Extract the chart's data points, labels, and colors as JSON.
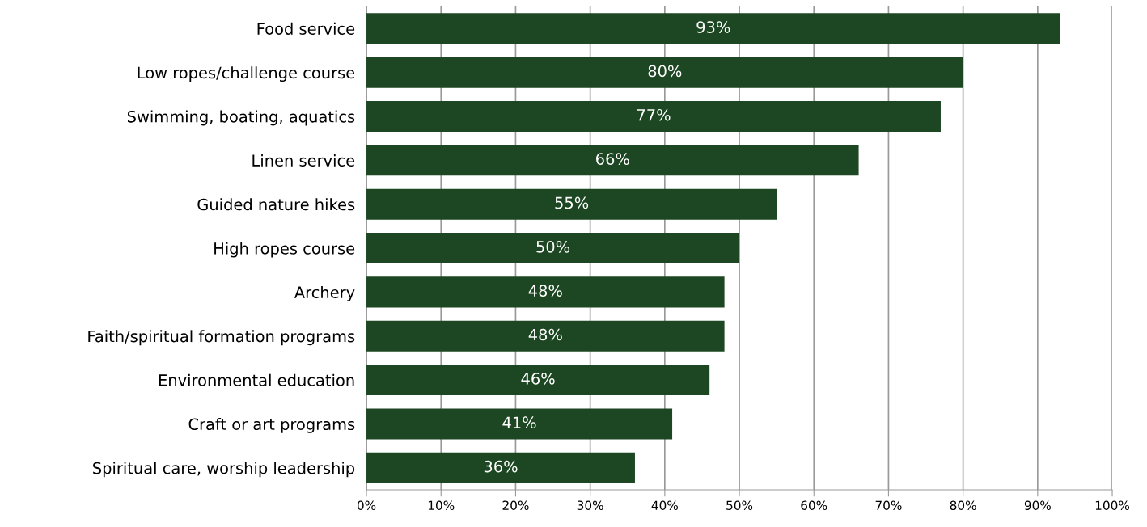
{
  "chart_data": {
    "type": "bar",
    "orientation": "horizontal",
    "categories": [
      "Food service",
      "Low ropes/challenge course",
      "Swimming, boating, aquatics",
      "Linen service",
      "Guided nature hikes",
      "High ropes course",
      "Archery",
      "Faith/spiritual formation programs",
      "Environmental education",
      "Craft or art programs",
      "Spiritual care, worship leadership"
    ],
    "values": [
      93,
      80,
      77,
      66,
      55,
      50,
      48,
      48,
      46,
      41,
      36
    ],
    "value_labels": [
      "93%",
      "80%",
      "77%",
      "66%",
      "55%",
      "50%",
      "48%",
      "48%",
      "46%",
      "41%",
      "36%"
    ],
    "color": "#1c4722",
    "xlim": [
      0,
      100
    ],
    "xticks": [
      {
        "value": 0,
        "label": "0%"
      },
      {
        "value": 10,
        "label": "10%"
      },
      {
        "value": 20,
        "label": "20%"
      },
      {
        "value": 30,
        "label": "30%"
      },
      {
        "value": 40,
        "label": "40%"
      },
      {
        "value": 50,
        "label": "50%"
      },
      {
        "value": 60,
        "label": "60%"
      },
      {
        "value": 70,
        "label": "70%"
      },
      {
        "value": 80,
        "label": "80%"
      },
      {
        "value": 90,
        "label": "90%"
      },
      {
        "value": 100,
        "label": "100%"
      }
    ],
    "grid": "x",
    "legend": false
  }
}
